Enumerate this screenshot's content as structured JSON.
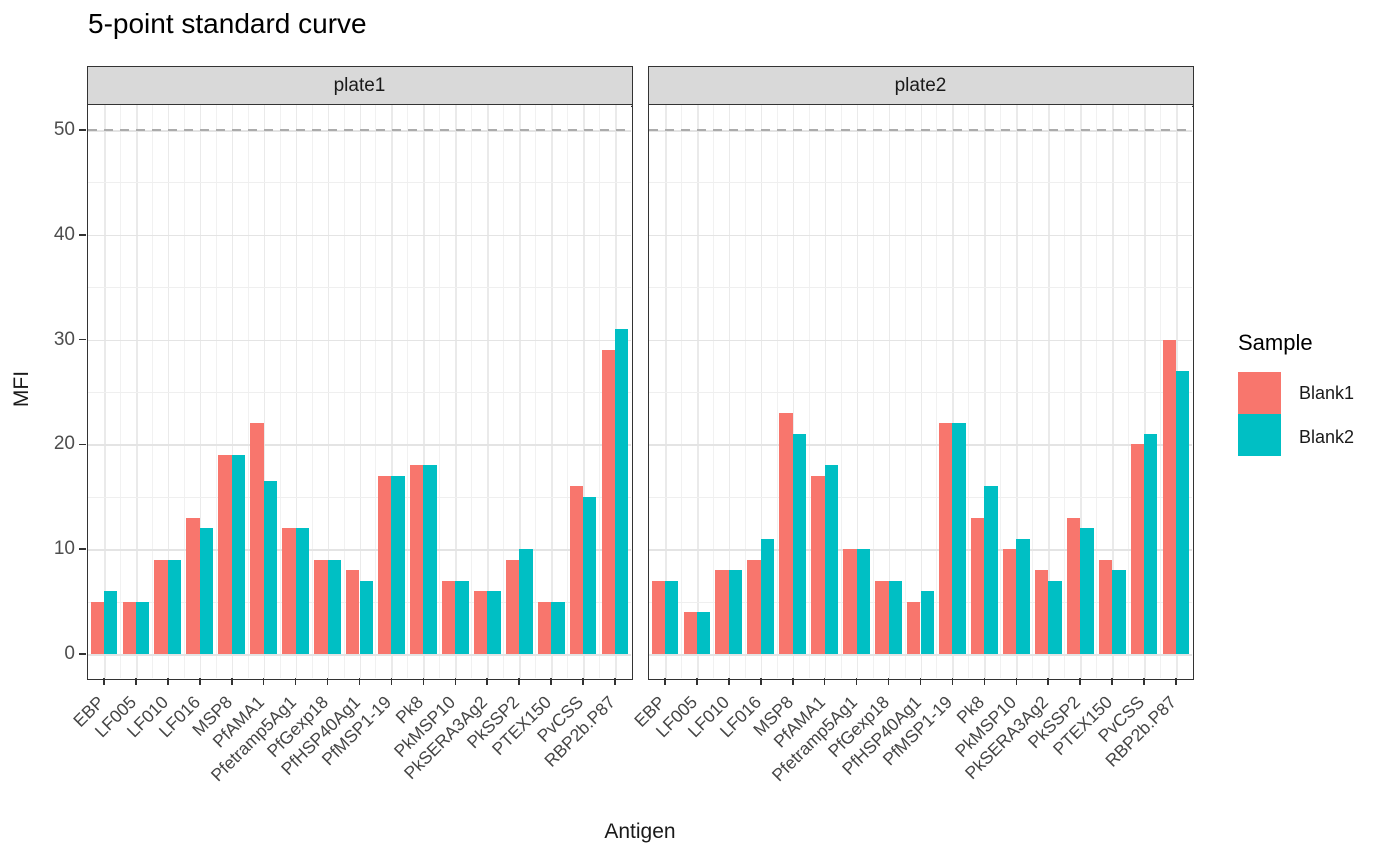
{
  "title": "5-point standard curve",
  "legend": {
    "title": "Sample",
    "items": [
      {
        "label": "Blank1",
        "color": "#F8766D"
      },
      {
        "label": "Blank2",
        "color": "#00BFC4"
      }
    ]
  },
  "chart_data": {
    "type": "bar",
    "title": "5-point standard curve",
    "xlabel": "Antigen",
    "ylabel": "MFI",
    "ylim": [
      0,
      52.5
    ],
    "yticks": [
      0,
      10,
      20,
      30,
      40,
      50
    ],
    "yticks_minor": [
      5,
      15,
      25,
      35,
      45
    ],
    "grid": true,
    "legend_position": "right",
    "hline": {
      "y": 50,
      "style": "dashed",
      "color": "#ABABAB"
    },
    "categories": [
      "EBP",
      "LF005",
      "LF010",
      "LF016",
      "MSP8",
      "PfAMA1",
      "Pfetramp5Ag1",
      "PfGexp18",
      "PfHSP40Ag1",
      "PfMSP1-19",
      "Pk8",
      "PkMSP10",
      "PkSERA3Ag2",
      "PkSSP2",
      "PTEX150",
      "PvCSS",
      "RBP2b.P87"
    ],
    "facets": [
      {
        "label": "plate1",
        "series": [
          {
            "name": "Blank1",
            "values": [
              5,
              5,
              9,
              13,
              19,
              22,
              12,
              9,
              8,
              17,
              18,
              7,
              6,
              9,
              5,
              16,
              29
            ]
          },
          {
            "name": "Blank2",
            "values": [
              6,
              5,
              9,
              12,
              19,
              16.5,
              12,
              9,
              7,
              17,
              18,
              7,
              6,
              10,
              5,
              15,
              31
            ]
          }
        ]
      },
      {
        "label": "plate2",
        "series": [
          {
            "name": "Blank1",
            "values": [
              7,
              4,
              8,
              9,
              23,
              17,
              10,
              7,
              5,
              22,
              13,
              10,
              8,
              13,
              9,
              20,
              30
            ]
          },
          {
            "name": "Blank2",
            "values": [
              7,
              4,
              8,
              11,
              21,
              18,
              10,
              7,
              6,
              22,
              16,
              11,
              7,
              12,
              8,
              21,
              27
            ]
          }
        ]
      }
    ]
  }
}
